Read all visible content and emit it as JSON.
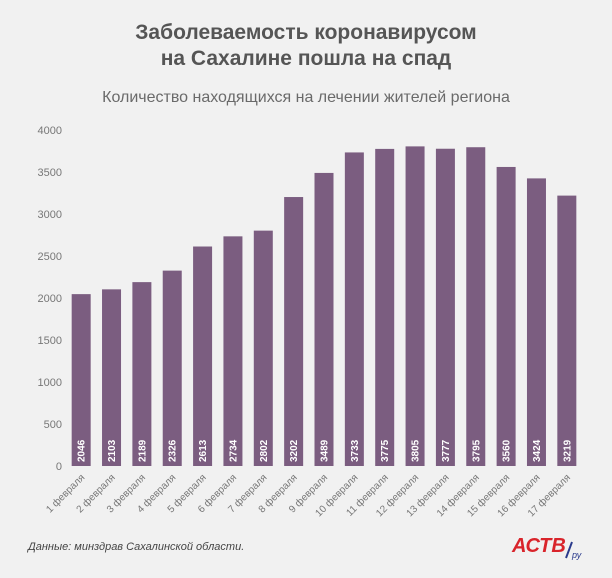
{
  "header": {
    "title_line1": "Заболеваемость коронавирусом",
    "title_line2": "на Сахалине пошла на спад",
    "subtitle": "Количество находящихся на лечении жителей региона"
  },
  "footer": {
    "source": "Данные: минздрав Сахалинской области.",
    "logo_text": "АСТВ",
    "logo_suffix": "ру"
  },
  "colors": {
    "bar": "#7b5d80",
    "label": "#ffffff",
    "axis_text": "#777777",
    "logo_red": "#d9242b",
    "logo_blue": "#2a3a8c"
  },
  "chart_data": {
    "type": "bar",
    "title": "Количество находящихся на лечении жителей региона",
    "xlabel": "",
    "ylabel": "",
    "ylim": [
      0,
      4000
    ],
    "yticks": [
      0,
      500,
      1000,
      1500,
      2000,
      2500,
      3000,
      3500,
      4000
    ],
    "grid": false,
    "legend": "none",
    "categories": [
      "1 февраля",
      "2 февраля",
      "3 февраля",
      "4 февраля",
      "5 февраля",
      "6 февраля",
      "7 февраля",
      "8 февраля",
      "9 февраля",
      "10 февраля",
      "11 февраля",
      "12 февраля",
      "13 февраля",
      "14 февраля",
      "15 февраля",
      "16 февраля",
      "17 февраля"
    ],
    "values": [
      2046,
      2103,
      2189,
      2326,
      2613,
      2734,
      2802,
      3202,
      3489,
      3733,
      3775,
      3805,
      3777,
      3795,
      3560,
      3424,
      3219
    ]
  }
}
